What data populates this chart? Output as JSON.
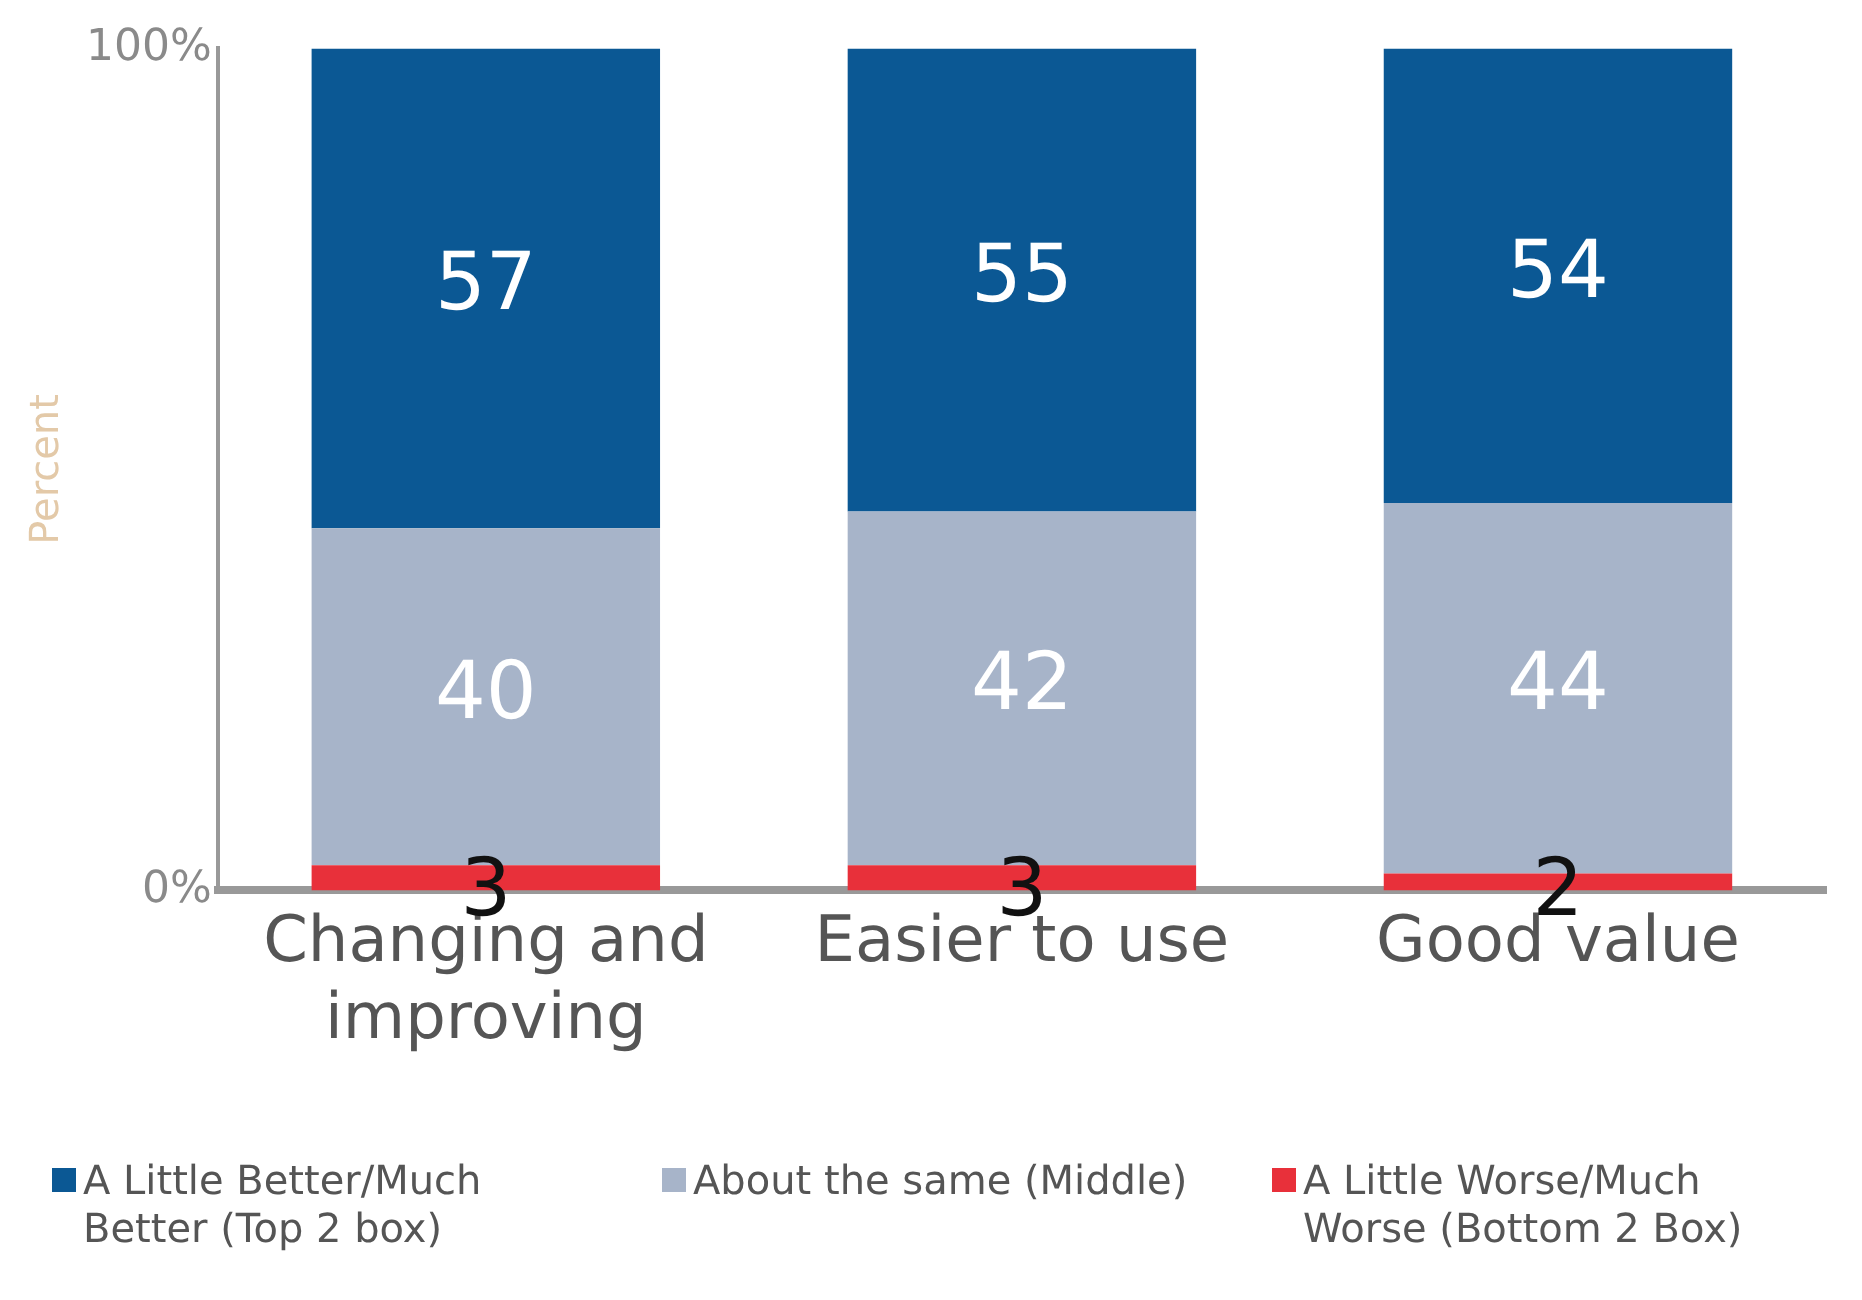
{
  "chart_data": {
    "type": "bar",
    "stacked": true,
    "ylabel": "Percent",
    "categories": [
      "Changing and improving",
      "Easier to use",
      "Good value"
    ],
    "series": [
      {
        "name": "A Little Worse/Much Worse (Bottom 2 Box)",
        "color": "#e8303a",
        "values": [
          3,
          3,
          2
        ]
      },
      {
        "name": "About the same (Middle)",
        "color": "#a7b4c9",
        "values": [
          40,
          42,
          44
        ]
      },
      {
        "name": "A Little Better/Much Better (Top 2 box)",
        "color": "#0b5894",
        "values": [
          57,
          55,
          54
        ]
      }
    ],
    "ylim": [
      0,
      100
    ],
    "yticks": [
      {
        "value": 0,
        "label": "0%"
      },
      {
        "value": 100,
        "label": "100%"
      }
    ],
    "data_labels": true,
    "legend": "bottom"
  }
}
